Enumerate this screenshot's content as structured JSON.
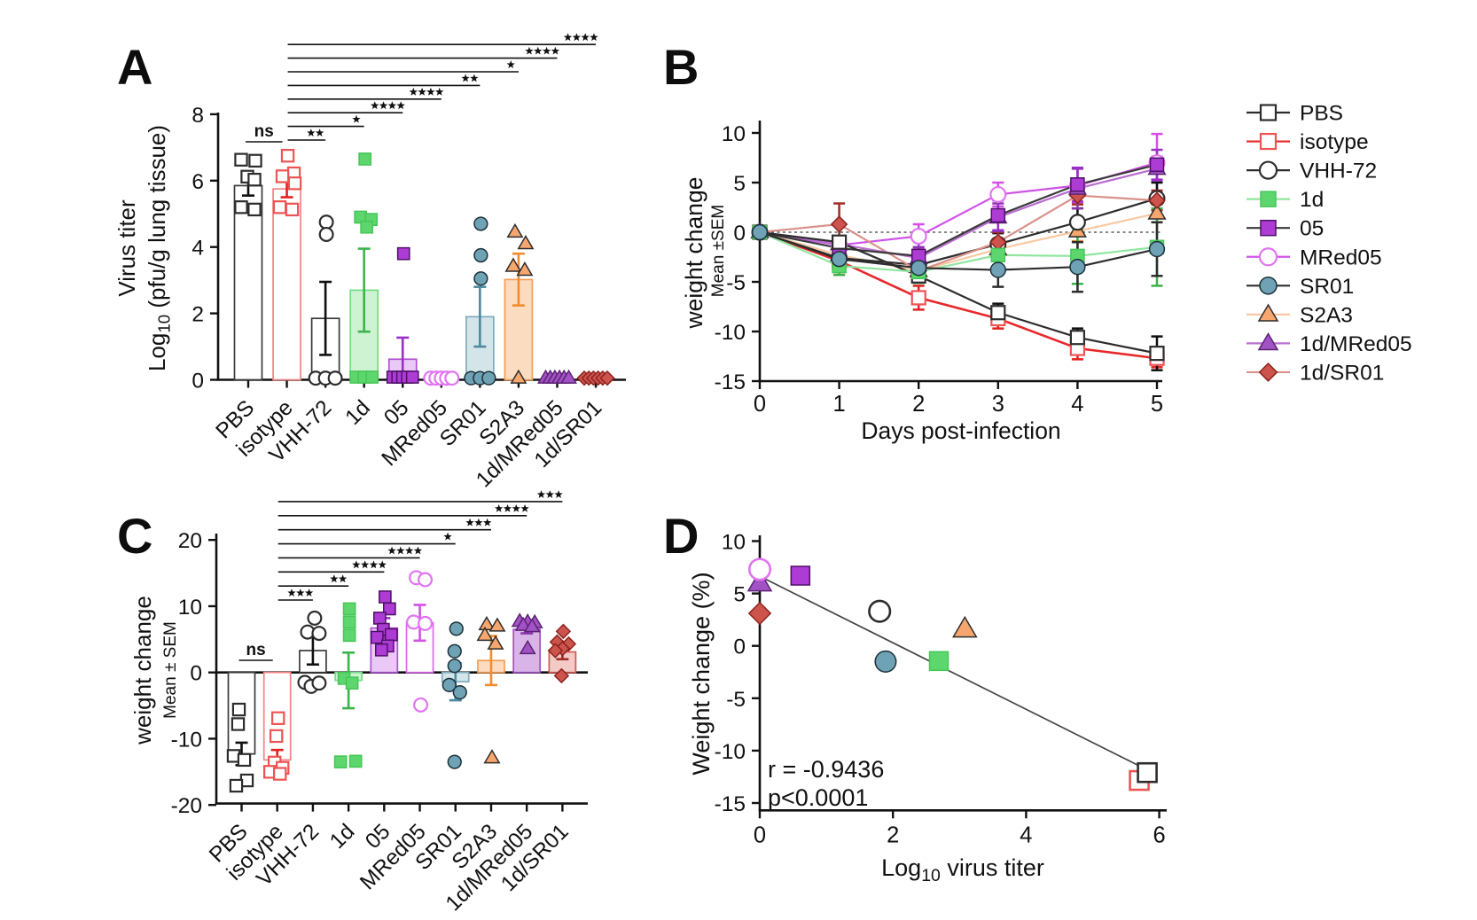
{
  "figure_title": "",
  "panel_labels": {
    "A": "A",
    "B": "B",
    "C": "C",
    "D": "D"
  },
  "groups": [
    {
      "id": "PBS",
      "label": "PBS",
      "marker": "square-open",
      "fill": "#ffffff",
      "stroke": "#2d2d2d",
      "line": "#2d2d2d",
      "barFill": "#ffffff",
      "barStroke": "#3a3a3a",
      "err": "#0f0f0f"
    },
    {
      "id": "isotype",
      "label": "isotype",
      "marker": "square-open",
      "fill": "#ffffff",
      "stroke": "#ef5353",
      "line": "#e8282b",
      "barFill": "#ffffff",
      "barStroke": "#f08484",
      "err": "#e2201f"
    },
    {
      "id": "VHH-72",
      "label": "VHH-72",
      "marker": "circle-open",
      "fill": "#ffffff",
      "stroke": "#2d2d2d",
      "line": "#2d2d2d",
      "barFill": "#ffffff",
      "barStroke": "#3a3a3a",
      "err": "#0f0f0f"
    },
    {
      "id": "1d",
      "label": "1d",
      "marker": "square",
      "fill": "#5dd76d",
      "stroke": "#45c657",
      "line": "#90e6a0",
      "barFill": "#cdf3d3",
      "barStroke": "#72dd82",
      "err": "#3cb34c"
    },
    {
      "id": "05",
      "label": "05",
      "marker": "square",
      "fill": "#ad3cd4",
      "stroke": "#4f1168",
      "line": "#3a3a3a",
      "barFill": "#eac9f6",
      "barStroke": "#b150d4",
      "err": "#9b30c8"
    },
    {
      "id": "MRed05",
      "label": "MRed05",
      "marker": "circle-open",
      "fill": "#ffffff",
      "stroke": "#e173f2",
      "line": "#cf53e8",
      "barFill": "#ffffff",
      "barStroke": "#dd66ee",
      "err": "#d44fe6"
    },
    {
      "id": "SR01",
      "label": "SR01",
      "marker": "circle",
      "fill": "#6fa2b4",
      "stroke": "#1c313b",
      "line": "#2d2d2d",
      "barFill": "#d4e5ea",
      "barStroke": "#7fabbc",
      "err": "#4d89a0"
    },
    {
      "id": "S2A3",
      "label": "S2A3",
      "marker": "triangle",
      "fill": "#f7a76e",
      "stroke": "#2d2d2d",
      "line": "#f8c9a2",
      "barFill": "#fcdcc1",
      "barStroke": "#f49e56",
      "err": "#ef8c30"
    },
    {
      "id": "1d/MRed05",
      "label": "1d/MRed05",
      "marker": "triangle",
      "fill": "#a152c4",
      "stroke": "#5c2374",
      "line": "#b96ed0",
      "barFill": "#d9b5e7",
      "barStroke": "#a152c4",
      "err": "#8a35ab"
    },
    {
      "id": "1d/SR01",
      "label": "1d/SR01",
      "marker": "diamond",
      "fill": "#cd544d",
      "stroke": "#8c231e",
      "line": "#d99089",
      "barFill": "#f3cac5",
      "barStroke": "#d25a52",
      "err": "#a02c24"
    }
  ],
  "legend": {
    "entries": [
      "PBS",
      "isotype",
      "VHH-72",
      "1d",
      "05",
      "MRed05",
      "SR01",
      "S2A3",
      "1d/MRed05",
      "1d/SR01"
    ]
  },
  "chart_data": [
    {
      "id": "A",
      "panel_label": "A",
      "type": "bar",
      "ylabel_line1": "Virus titer",
      "ylabel_line2": "Log₁₀ (pfu/g lung tissue)",
      "ylim": [
        0,
        8
      ],
      "yticks": [
        0,
        2,
        4,
        6,
        8
      ],
      "categories": [
        "PBS",
        "isotype",
        "VHH-72",
        "1d",
        "05",
        "MRed05",
        "SR01",
        "S2A3",
        "1d/MRed05",
        "1d/SR01"
      ],
      "means": [
        5.85,
        5.75,
        1.85,
        2.7,
        0.62,
        0,
        1.9,
        3.02,
        0,
        0
      ],
      "sems": [
        0.3,
        0.25,
        1.1,
        1.25,
        0.65,
        0,
        0.9,
        0.78,
        0,
        0
      ],
      "points": {
        "PBS": [
          [
            6.63,
            -8
          ],
          [
            6.6,
            8
          ],
          [
            6.12,
            -1
          ],
          [
            6.03,
            7
          ],
          [
            5.2,
            -8
          ],
          [
            5.13,
            7
          ]
        ],
        "isotype": [
          [
            6.75,
            1
          ],
          [
            6.22,
            8
          ],
          [
            6.13,
            -5
          ],
          [
            5.92,
            9
          ],
          [
            5.2,
            -8
          ],
          [
            5.13,
            6
          ]
        ],
        "VHH-72": [
          [
            4.75,
            1
          ],
          [
            4.38,
            1
          ],
          [
            0.05,
            -11
          ],
          [
            0.05,
            0
          ],
          [
            0.05,
            11
          ]
        ],
        "1d": [
          [
            6.65,
            1
          ],
          [
            4.9,
            -4
          ],
          [
            4.83,
            8
          ],
          [
            4.6,
            3
          ],
          [
            0.08,
            -9
          ],
          [
            0.08,
            0
          ],
          [
            0.08,
            9
          ]
        ],
        "05": [
          [
            3.8,
            1
          ],
          [
            0.08,
            -11
          ],
          [
            0.08,
            -5.5
          ],
          [
            0.08,
            0
          ],
          [
            0.08,
            5.5
          ],
          [
            0.08,
            11
          ]
        ],
        "MRed05": [
          [
            0.05,
            -12
          ],
          [
            0.05,
            -6
          ],
          [
            0.05,
            0
          ],
          [
            0.05,
            6
          ],
          [
            0.05,
            12
          ]
        ],
        "SR01": [
          [
            4.7,
            1
          ],
          [
            3.75,
            1
          ],
          [
            3.05,
            1
          ],
          [
            0.05,
            -10
          ],
          [
            0.05,
            0
          ],
          [
            0.05,
            10
          ]
        ],
        "S2A3": [
          [
            4.45,
            -4
          ],
          [
            4.1,
            8
          ],
          [
            3.42,
            -6
          ],
          [
            3.3,
            7
          ],
          [
            0.05,
            0
          ]
        ],
        "1d/MRed05": [
          [
            0.05,
            -13
          ],
          [
            0.05,
            -7.8
          ],
          [
            0.05,
            -2.6
          ],
          [
            0.05,
            2.6
          ],
          [
            0.05,
            7.8
          ],
          [
            0.05,
            13
          ]
        ],
        "1d/SR01": [
          [
            0.05,
            -13
          ],
          [
            0.05,
            -7.8
          ],
          [
            0.05,
            -2.6
          ],
          [
            0.05,
            2.6
          ],
          [
            0.05,
            7.8
          ],
          [
            0.05,
            13
          ]
        ]
      },
      "ns_bracket": {
        "from": "PBS",
        "to": "isotype",
        "label": "ns"
      },
      "brackets": [
        {
          "from": "isotype",
          "to": "VHH-72",
          "label": "**"
        },
        {
          "from": "isotype",
          "to": "1d",
          "label": "*"
        },
        {
          "from": "isotype",
          "to": "05",
          "label": "****"
        },
        {
          "from": "isotype",
          "to": "MRed05",
          "label": "****"
        },
        {
          "from": "isotype",
          "to": "SR01",
          "label": "**"
        },
        {
          "from": "isotype",
          "to": "S2A3",
          "label": "*"
        },
        {
          "from": "isotype",
          "to": "1d/MRed05",
          "label": "****"
        },
        {
          "from": "isotype",
          "to": "1d/SR01",
          "label": "****"
        }
      ]
    },
    {
      "id": "B",
      "panel_label": "B",
      "type": "line",
      "xlabel": "Days post-infection",
      "ylabel": "weight change",
      "ylabel_sub": "Mean ±SEM",
      "x": [
        0,
        1,
        2,
        3,
        4,
        5
      ],
      "xlim": [
        0,
        5
      ],
      "ylim": [
        -15,
        10
      ],
      "yticks": [
        -15,
        -10,
        -5,
        0,
        5,
        10
      ],
      "zero_line": true,
      "series": [
        {
          "name": "PBS",
          "values": [
            0,
            -1.0,
            -4.4,
            -8.1,
            -10.6,
            -12.2
          ],
          "sem": [
            0.25,
            0.6,
            0.7,
            0.9,
            0.9,
            1.7
          ]
        },
        {
          "name": "isotype",
          "values": [
            0,
            -2.9,
            -6.6,
            -8.7,
            -11.7,
            -12.7
          ],
          "sem": [
            0.25,
            1.4,
            1.2,
            1.0,
            1.1,
            0.9
          ]
        },
        {
          "name": "VHH-72",
          "values": [
            0,
            -2.6,
            -3.3,
            -1.2,
            1.0,
            3.4
          ],
          "sem": [
            0.25,
            0.8,
            0.9,
            1.1,
            1.4,
            1.6
          ]
        },
        {
          "name": "1d",
          "values": [
            0,
            -3.4,
            -4.0,
            -2.3,
            -2.4,
            -1.5
          ],
          "sem": [
            0.25,
            0.9,
            1.1,
            1.3,
            2.8,
            3.9
          ]
        },
        {
          "name": "05",
          "values": [
            0,
            -1.6,
            -2.4,
            1.7,
            4.8,
            6.8
          ],
          "sem": [
            0.25,
            0.7,
            1.5,
            1.5,
            1.7,
            1.5
          ]
        },
        {
          "name": "MRed05",
          "values": [
            0,
            -1.3,
            -0.4,
            3.8,
            4.7,
            7.0
          ],
          "sem": [
            0.25,
            0.7,
            1.2,
            1.2,
            1.7,
            2.9
          ]
        },
        {
          "name": "SR01",
          "values": [
            0,
            -2.7,
            -3.6,
            -3.8,
            -3.5,
            -1.7
          ],
          "sem": [
            0.25,
            0.7,
            0.9,
            1.7,
            2.5,
            2.7
          ]
        },
        {
          "name": "S2A3",
          "values": [
            0,
            -2.3,
            -3.9,
            -1.7,
            0.1,
            1.9
          ],
          "sem": [
            0.25,
            0.7,
            1.0,
            0.9,
            1.0,
            0.9
          ]
        },
        {
          "name": "1d/MRed05",
          "values": [
            0,
            -1.2,
            -2.6,
            1.5,
            4.4,
            6.4
          ],
          "sem": [
            0.25,
            0.5,
            1.1,
            1.4,
            2.0,
            1.2
          ]
        },
        {
          "name": "1d/SR01",
          "values": [
            0,
            0.8,
            -3.9,
            -1.0,
            3.7,
            3.2
          ],
          "sem": [
            0.25,
            2.1,
            1.0,
            1.0,
            0.9,
            1.0
          ]
        }
      ]
    },
    {
      "id": "C",
      "panel_label": "C",
      "type": "bar",
      "ylabel_line1": "weight change",
      "ylabel_line2": "Mean ± SEM",
      "ylim": [
        -20,
        20
      ],
      "yticks": [
        -20,
        -10,
        0,
        10,
        20
      ],
      "categories": [
        "PBS",
        "isotype",
        "VHH-72",
        "1d",
        "05",
        "MRed05",
        "SR01",
        "S2A3",
        "1d/MRed05",
        "1d/SR01"
      ],
      "means": [
        -12.3,
        -13.2,
        3.3,
        -1.2,
        6.7,
        7.5,
        -1.4,
        1.8,
        6.5,
        3.1
      ],
      "sems": [
        1.7,
        1.5,
        2.1,
        4.2,
        1.5,
        2.7,
        2.8,
        3.7,
        0.6,
        1.1
      ],
      "points": {
        "PBS": [
          [
            -5.6,
            -3
          ],
          [
            -7.8,
            -4
          ],
          [
            -12.6,
            -9
          ],
          [
            -13.2,
            3
          ],
          [
            -16.3,
            6
          ],
          [
            -17.1,
            -6
          ]
        ],
        "isotype": [
          [
            -6.9,
            1
          ],
          [
            -9.6,
            -1
          ],
          [
            -13.6,
            -3
          ],
          [
            -14.4,
            6
          ],
          [
            -15.0,
            -8
          ],
          [
            -15.3,
            3
          ]
        ],
        "VHH-72": [
          [
            8.2,
            2
          ],
          [
            6.1,
            -6
          ],
          [
            5.9,
            7
          ],
          [
            -1.5,
            -9
          ],
          [
            -2.1,
            -2
          ],
          [
            -1.6,
            7
          ]
        ],
        "1d": [
          [
            9.6,
            1
          ],
          [
            7.6,
            1
          ],
          [
            5.6,
            1
          ],
          [
            -0.9,
            -5
          ],
          [
            -1.6,
            4
          ],
          [
            -13.5,
            -9
          ],
          [
            -13.4,
            8
          ]
        ],
        "05": [
          [
            11.4,
            1
          ],
          [
            9.6,
            6
          ],
          [
            8.2,
            -5
          ],
          [
            6.5,
            -1
          ],
          [
            5.7,
            8
          ],
          [
            5.3,
            -8
          ],
          [
            4.0,
            4
          ],
          [
            3.4,
            -3
          ]
        ],
        "MRed05": [
          [
            14.3,
            -4
          ],
          [
            14.0,
            6
          ],
          [
            7.6,
            -7
          ],
          [
            7.4,
            6
          ],
          [
            -4.9,
            1
          ]
        ],
        "SR01": [
          [
            6.6,
            1
          ],
          [
            3.2,
            -1
          ],
          [
            1.0,
            -1
          ],
          [
            -1.9,
            -7
          ],
          [
            -3.0,
            5
          ],
          [
            -13.5,
            -1
          ]
        ],
        "S2A3": [
          [
            7.2,
            -5
          ],
          [
            7.0,
            7
          ],
          [
            5.6,
            -7
          ],
          [
            4.3,
            5
          ],
          [
            -12.9,
            1
          ]
        ],
        "1d/MRed05": [
          [
            7.7,
            -8
          ],
          [
            7.6,
            1
          ],
          [
            7.5,
            9
          ],
          [
            7.1,
            -4
          ],
          [
            6.9,
            6
          ],
          [
            3.6,
            1
          ]
        ],
        "1d/SR01": [
          [
            6.2,
            1
          ],
          [
            4.6,
            -6
          ],
          [
            4.3,
            7
          ],
          [
            3.6,
            0
          ],
          [
            3.3,
            -8
          ],
          [
            -0.5,
            -1
          ]
        ]
      },
      "ns_bracket": {
        "from": "PBS",
        "to": "isotype",
        "label": "ns"
      },
      "brackets": [
        {
          "from": "isotype",
          "to": "VHH-72",
          "label": "***"
        },
        {
          "from": "isotype",
          "to": "1d",
          "label": "**"
        },
        {
          "from": "isotype",
          "to": "05",
          "label": "****"
        },
        {
          "from": "isotype",
          "to": "MRed05",
          "label": "****"
        },
        {
          "from": "isotype",
          "to": "SR01",
          "label": "*"
        },
        {
          "from": "isotype",
          "to": "S2A3",
          "label": "***"
        },
        {
          "from": "isotype",
          "to": "1d/MRed05",
          "label": "****"
        },
        {
          "from": "isotype",
          "to": "1d/SR01",
          "label": "***"
        }
      ]
    },
    {
      "id": "D",
      "panel_label": "D",
      "type": "scatter",
      "xlabel": "Log₁₀ virus titer",
      "ylabel": "Weight change (%)",
      "xlim": [
        0,
        6
      ],
      "xticks": [
        0,
        2,
        4,
        6
      ],
      "ylim": [
        -15,
        10
      ],
      "yticks": [
        -15,
        -10,
        -5,
        0,
        5,
        10
      ],
      "points": [
        {
          "group": "1d/MRed05",
          "x": 0,
          "y": 6.0
        },
        {
          "group": "MRed05",
          "x": 0,
          "y": 7.3
        },
        {
          "group": "1d/SR01",
          "x": 0,
          "y": 3.1
        },
        {
          "group": "05",
          "x": 0.61,
          "y": 6.7
        },
        {
          "group": "VHH-72",
          "x": 1.8,
          "y": 3.3
        },
        {
          "group": "SR01",
          "x": 1.89,
          "y": -1.5
        },
        {
          "group": "1d",
          "x": 2.69,
          "y": -1.45
        },
        {
          "group": "S2A3",
          "x": 3.08,
          "y": 1.6
        },
        {
          "group": "isotype",
          "x": 5.7,
          "y": -12.85
        },
        {
          "group": "PBS",
          "x": 5.82,
          "y": -12.1
        }
      ],
      "trend": {
        "x1": 0.03,
        "y1": 6.55,
        "x2": 5.84,
        "y2": -11.9
      },
      "annotation": [
        "r = -0.9436",
        "p<0.0001"
      ]
    }
  ]
}
